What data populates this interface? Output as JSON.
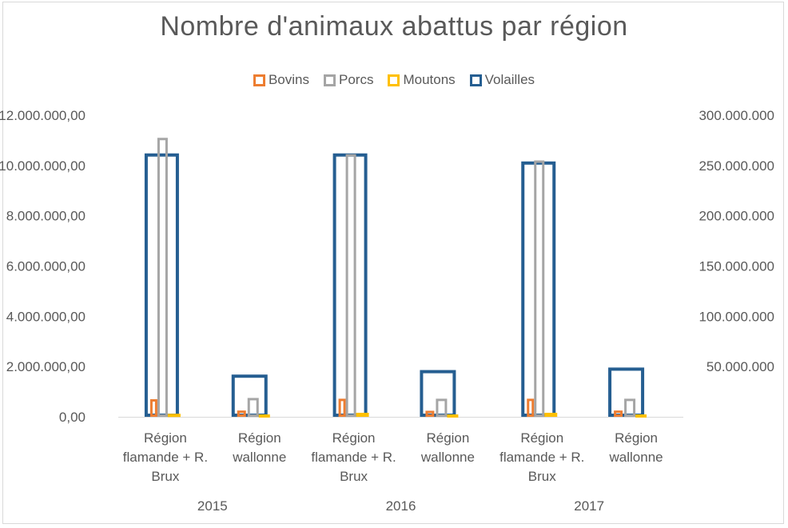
{
  "chart_data": {
    "type": "bar",
    "title": "Nombre d'animaux abattus par région",
    "groups": [
      {
        "year": "2015",
        "regions": [
          "Région flamande + R. Brux",
          "Région wallonne"
        ]
      },
      {
        "year": "2016",
        "regions": [
          "Région flamande + R. Brux",
          "Région wallonne"
        ]
      },
      {
        "year": "2017",
        "regions": [
          "Région flamande + R. Brux",
          "Région wallonne"
        ]
      }
    ],
    "region_label_lines": {
      "flandre": [
        "Région",
        "flamande + R.",
        "Brux"
      ],
      "wallonie": [
        "Région",
        "wallonne"
      ]
    },
    "series": [
      {
        "name": "Bovins",
        "axis": "left",
        "color": "#ed7d31",
        "values": [
          700000,
          250000,
          720000,
          240000,
          720000,
          250000
        ]
      },
      {
        "name": "Porcs",
        "axis": "left",
        "color": "#a5a5a5",
        "values": [
          11100000,
          750000,
          10450000,
          720000,
          10200000,
          720000
        ]
      },
      {
        "name": "Moutons",
        "axis": "left",
        "color": "#ffc000",
        "values": [
          120000,
          40000,
          160000,
          40000,
          160000,
          40000
        ]
      },
      {
        "name": "Volailles",
        "axis": "right",
        "color": "#255e91",
        "values": [
          262000000,
          42000000,
          262000000,
          46500000,
          254000000,
          49000000
        ]
      }
    ],
    "left_axis": {
      "min": 0,
      "max": 12000000,
      "ticks": [
        0,
        2000000,
        4000000,
        6000000,
        8000000,
        10000000,
        12000000
      ],
      "tick_labels": [
        "0,00",
        "2.000.000,00",
        "4.000.000,00",
        "6.000.000,00",
        "8.000.000,00",
        "10.000.000,00",
        "12.000.000,00"
      ]
    },
    "right_axis": {
      "min": 0,
      "max": 300000000,
      "ticks": [
        50000000,
        100000000,
        150000000,
        200000000,
        250000000,
        300000000
      ],
      "tick_labels": [
        "50.000.000",
        "100.000.000",
        "150.000.000",
        "200.000.000",
        "250.000.000",
        "300.000.000"
      ]
    },
    "legend_position": "top",
    "grid": false
  }
}
